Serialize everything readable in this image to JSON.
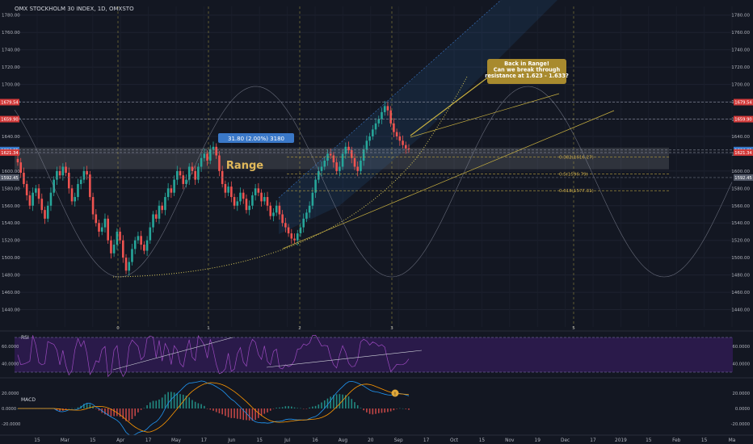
{
  "header": {
    "title": "OMX STOCKHOLM 30 INDEX, 1D, OMXSTO"
  },
  "chart_data": [
    {
      "type": "candlestick",
      "panel": "price",
      "title": "OMX STOCKHOLM 30 INDEX, 1D, OMXSTO",
      "ylim": [
        1420,
        1790
      ],
      "y_ticks": [
        1440,
        1460,
        1480,
        1500,
        1520,
        1540,
        1560,
        1580,
        1600,
        1620,
        1640,
        1660,
        1680,
        1700,
        1720,
        1740,
        1760,
        1780
      ],
      "x_tick_labels": [
        "15",
        "Mar",
        "15",
        "Apr",
        "17",
        "May",
        "17",
        "Jun",
        "15",
        "Jul",
        "16",
        "Aug",
        "20",
        "Sep",
        "17",
        "Oct",
        "15",
        "Nov",
        "19",
        "Dec",
        "17",
        "2019",
        "15",
        "Feb",
        "15",
        "Ma"
      ],
      "close_series": [
        1610,
        1598,
        1585,
        1572,
        1560,
        1575,
        1580,
        1568,
        1555,
        1545,
        1560,
        1575,
        1590,
        1600,
        1595,
        1605,
        1598,
        1580,
        1565,
        1570,
        1585,
        1590,
        1600,
        1596,
        1570,
        1550,
        1540,
        1530,
        1535,
        1545,
        1520,
        1505,
        1515,
        1530,
        1520,
        1500,
        1485,
        1495,
        1510,
        1520,
        1525,
        1515,
        1508,
        1520,
        1535,
        1550,
        1545,
        1560,
        1555,
        1570,
        1580,
        1575,
        1590,
        1600,
        1595,
        1585,
        1590,
        1605,
        1600,
        1590,
        1605,
        1615,
        1620,
        1612,
        1625,
        1628,
        1618,
        1600,
        1585,
        1575,
        1582,
        1570,
        1560,
        1565,
        1575,
        1568,
        1555,
        1560,
        1572,
        1580,
        1575,
        1565,
        1570,
        1560,
        1548,
        1552,
        1560,
        1550,
        1540,
        1535,
        1528,
        1522,
        1520,
        1528,
        1535,
        1545,
        1552,
        1560,
        1575,
        1590,
        1600,
        1605,
        1612,
        1620,
        1618,
        1610,
        1600,
        1605,
        1620,
        1628,
        1624,
        1615,
        1605,
        1600,
        1612,
        1625,
        1635,
        1640,
        1648,
        1655,
        1660,
        1668,
        1675,
        1670,
        1655,
        1645,
        1640,
        1635,
        1630,
        1626,
        1625
      ],
      "bands": [
        {
          "label": "Range",
          "low": 1602,
          "high": 1627
        }
      ],
      "fib_levels": [
        {
          "label": "0.382(1616.27)",
          "value": 1616.27
        },
        {
          "label": "0.5(1596.79)",
          "value": 1596.79
        },
        {
          "label": "0.618(1577.31)",
          "value": 1577.31
        }
      ],
      "horizontal_lines": [
        {
          "label": "1679.54",
          "value": 1679.54,
          "color": "#d23a3a"
        },
        {
          "label": "1659.90",
          "value": 1659.9,
          "color": "#d23a3a"
        },
        {
          "label": "1624.25",
          "value": 1624.25,
          "color": "#3a78c8"
        },
        {
          "label": "1621.34",
          "value": 1621.34,
          "color": "#d23a3a"
        },
        {
          "label": "1592.45",
          "value": 1592.45,
          "color": "#555b6a"
        }
      ],
      "measure_label": "31.80 (2.00%) 3180",
      "annotation": "Back in Range!\nCan we break through\nresistance at 1.623 - 1.633?",
      "cycle_labels": [
        "0",
        "1",
        "2",
        "3",
        "5"
      ]
    },
    {
      "type": "line",
      "panel": "RSI",
      "title": "RSI",
      "y_ticks": [
        60,
        40
      ],
      "y_tick_labels": [
        "60.0000",
        "40.0000"
      ],
      "band": [
        30,
        70
      ]
    },
    {
      "type": "histogram+line",
      "panel": "MACD",
      "title": "MACD",
      "y_ticks": [
        20,
        0,
        -20
      ],
      "y_tick_labels": [
        "20.0000",
        "0.0000",
        "-20.0000"
      ]
    }
  ],
  "colors": {
    "background": "#131722",
    "up": "#26a69a",
    "down": "#ef5350",
    "annotation_bg": "#a88a2e",
    "range_label": "#e0b85a",
    "rsi_band": "#2a1a4a"
  }
}
